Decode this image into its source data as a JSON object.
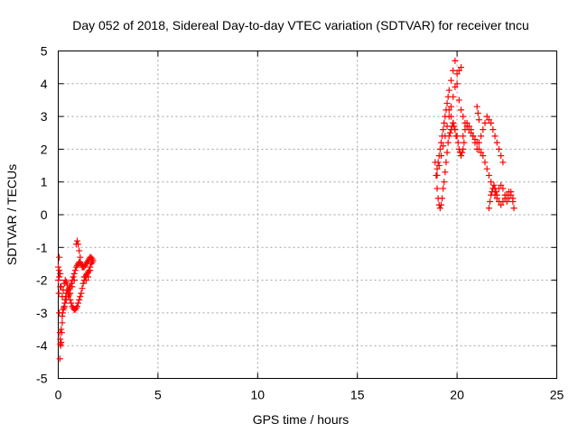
{
  "chart_data": {
    "type": "scatter",
    "title": "Day 052 of 2018, Sidereal Day-to-day VTEC variation (SDTVAR) for receiver tncu",
    "xlabel": "GPS time / hours",
    "ylabel": "SDTVAR / TECUs",
    "xlim": [
      0,
      25
    ],
    "ylim": [
      -5,
      5
    ],
    "x_ticks": [
      "0",
      "5",
      "10",
      "15",
      "20",
      "25"
    ],
    "y_ticks": [
      "5",
      "4",
      "3",
      "2",
      "1",
      "0",
      "-1",
      "-2",
      "-3",
      "-4",
      "-5"
    ],
    "grid": true,
    "grid_style": "dotted",
    "legend": "none",
    "marker": "plus",
    "series_color": "#ff0000",
    "series": [
      {
        "x": [
          0.0,
          0.03,
          0.05,
          0.08,
          0.1,
          0.12,
          0.15,
          0.18,
          0.2,
          0.22,
          0.25,
          0.28,
          0.3,
          0.33,
          0.35,
          0.38,
          0.4,
          0.45,
          0.5,
          0.55,
          0.6,
          0.65,
          0.7,
          0.75,
          0.8,
          0.85,
          0.9,
          0.95,
          1.0,
          1.05,
          1.1,
          1.15,
          1.2,
          1.25,
          1.3,
          1.35,
          1.4,
          1.45,
          1.5,
          1.55,
          1.6,
          1.65,
          1.7,
          1.75,
          0.05,
          0.1,
          0.15,
          0.2,
          0.25,
          0.3,
          0.35,
          0.4,
          0.45,
          0.5,
          0.55,
          0.6,
          0.65,
          0.7,
          0.75,
          0.8,
          0.85,
          0.9,
          0.95,
          1.0,
          1.05,
          1.1,
          1.15,
          1.2,
          1.25,
          1.3,
          1.35,
          1.4,
          1.45,
          1.5,
          1.55,
          1.6,
          1.65,
          1.7,
          0.05,
          0.08,
          0.1,
          0.15,
          0.2,
          0.3,
          0.4,
          0.5,
          0.6,
          0.7,
          0.8,
          0.9,
          0.95,
          1.0,
          1.05,
          1.1,
          1.2,
          1.3,
          1.4,
          1.5,
          1.6,
          0.0,
          0.05,
          0.1
        ],
        "y": [
          -2.0,
          -2.4,
          -3.0,
          -3.6,
          -3.95,
          -4.0,
          -3.9,
          -3.6,
          -3.3,
          -3.0,
          -2.9,
          -2.85,
          -2.8,
          -2.7,
          -2.6,
          -2.5,
          -2.4,
          -2.3,
          -2.3,
          -2.25,
          -2.2,
          -2.1,
          -2.0,
          -1.9,
          -1.8,
          -1.7,
          -1.6,
          -1.55,
          -1.5,
          -1.45,
          -1.45,
          -1.5,
          -1.55,
          -1.6,
          -1.6,
          -1.55,
          -1.5,
          -1.45,
          -1.4,
          -1.35,
          -1.3,
          -1.3,
          -1.35,
          -1.4,
          -1.9,
          -1.8,
          -2.2,
          -2.5,
          -2.3,
          -2.1,
          -2.0,
          -2.05,
          -2.15,
          -2.3,
          -2.45,
          -2.6,
          -2.7,
          -2.8,
          -2.85,
          -2.9,
          -2.9,
          -2.85,
          -2.8,
          -2.7,
          -2.6,
          -2.5,
          -2.4,
          -2.25,
          -2.1,
          -2.0,
          -1.9,
          -1.85,
          -1.8,
          -1.75,
          -1.7,
          -1.6,
          -1.5,
          -1.45,
          -1.3,
          -4.4,
          -3.8,
          -3.5,
          -3.1,
          -2.8,
          -2.6,
          -2.5,
          -2.4,
          -2.2,
          -2.0,
          -0.9,
          -0.8,
          -0.9,
          -1.1,
          -1.3,
          -1.6,
          -1.9,
          -2.0,
          -1.9,
          -1.7,
          -1.6,
          -1.7,
          -2.2
        ]
      },
      {
        "x": [
          18.9,
          18.95,
          19.0,
          19.05,
          19.1,
          19.15,
          19.2,
          19.25,
          19.3,
          19.35,
          19.4,
          19.45,
          19.5,
          19.55,
          19.6,
          19.65,
          19.7,
          19.75,
          19.8,
          19.85,
          19.9,
          19.95,
          19.0,
          19.05,
          19.1,
          19.15,
          19.2,
          19.25,
          19.3,
          19.35,
          19.4,
          19.45,
          19.5,
          19.55,
          19.6,
          19.7,
          19.8,
          19.9,
          20.0,
          20.1,
          20.2,
          20.3,
          20.4,
          20.5,
          20.6,
          20.7,
          20.8,
          20.9,
          21.0,
          21.1,
          21.2,
          21.3,
          21.4,
          21.5,
          21.6,
          21.7,
          21.8,
          21.9,
          22.0,
          22.1,
          22.2,
          22.3,
          22.4,
          22.5,
          22.6,
          22.7,
          22.8,
          22.85,
          19.6,
          19.7,
          19.8,
          19.9,
          20.0,
          20.05,
          20.1,
          20.15,
          20.2,
          20.25,
          20.3,
          20.35,
          20.0,
          20.1,
          20.2,
          20.3,
          20.4,
          20.5,
          20.6,
          20.7,
          20.8,
          20.9,
          21.0,
          21.1,
          21.2,
          21.3,
          21.4,
          21.5,
          21.6,
          21.7,
          21.8,
          21.9,
          22.0,
          22.1,
          22.2,
          22.3,
          21.6,
          21.65,
          21.7,
          21.75,
          21.8,
          21.85,
          21.9,
          21.95,
          22.0,
          22.1,
          22.2,
          22.3,
          22.4,
          22.5,
          22.6,
          22.7,
          22.8,
          21.0,
          21.05,
          21.1,
          19.0,
          19.1,
          19.2,
          19.3,
          19.4,
          19.5,
          19.6,
          19.7,
          19.8,
          19.9
        ],
        "y": [
          1.6,
          1.2,
          0.8,
          0.5,
          0.3,
          0.2,
          0.3,
          0.5,
          0.8,
          1.0,
          1.3,
          1.6,
          1.9,
          2.2,
          2.4,
          2.5,
          2.6,
          2.7,
          2.8,
          2.7,
          2.6,
          2.4,
          1.4,
          1.6,
          1.8,
          2.0,
          2.2,
          2.4,
          2.6,
          2.8,
          3.0,
          3.2,
          3.4,
          3.6,
          3.8,
          4.1,
          4.4,
          4.7,
          4.0,
          3.5,
          3.2,
          3.0,
          2.8,
          2.7,
          2.6,
          2.5,
          2.4,
          2.3,
          2.2,
          2.0,
          1.9,
          1.8,
          1.6,
          1.4,
          1.2,
          1.0,
          0.8,
          0.6,
          0.5,
          0.4,
          0.3,
          0.4,
          0.5,
          0.6,
          0.7,
          0.6,
          0.4,
          0.2,
          3.2,
          3.0,
          2.8,
          2.6,
          2.4,
          2.2,
          2.0,
          1.9,
          1.8,
          1.9,
          2.0,
          2.2,
          4.3,
          4.4,
          4.5,
          2.4,
          2.6,
          2.8,
          2.7,
          2.6,
          2.4,
          2.2,
          2.0,
          2.2,
          2.4,
          2.6,
          2.8,
          3.0,
          2.9,
          2.8,
          2.6,
          2.4,
          2.2,
          2.0,
          1.8,
          1.6,
          0.2,
          0.4,
          0.6,
          0.7,
          0.8,
          0.9,
          0.8,
          0.7,
          0.6,
          0.8,
          0.9,
          0.8,
          0.6,
          0.4,
          0.5,
          0.7,
          0.5,
          3.3,
          3.1,
          2.9,
          1.2,
          1.5,
          1.8,
          2.1,
          2.4,
          2.7,
          3.0,
          3.3,
          3.6,
          3.9
        ]
      }
    ]
  }
}
